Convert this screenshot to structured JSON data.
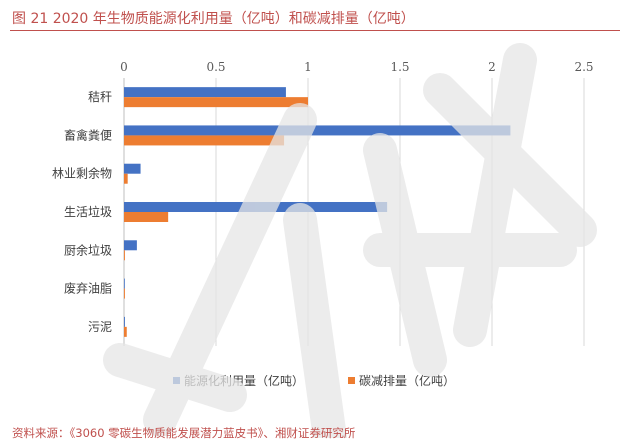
{
  "title": "图 21 2020 年生物质能源化利用量（亿吨）和碳减排量（亿吨）",
  "source": "资料来源：《3060 零碳生物质能发展潜力蓝皮书》、湘财证券研究所",
  "chart_data": {
    "type": "bar",
    "orientation": "horizontal",
    "categories": [
      "秸秆",
      "畜禽粪便",
      "林业剩余物",
      "生活垃圾",
      "厨余垃圾",
      "废弃油脂",
      "污泥"
    ],
    "x_ticks": [
      "0",
      "0.5",
      "1",
      "1.5",
      "2",
      "2.5"
    ],
    "xlim": [
      0,
      2.5
    ],
    "series": [
      {
        "name": "能源化利用量（亿吨）",
        "color": "#4472c4",
        "values": [
          0.88,
          2.1,
          0.09,
          1.43,
          0.07,
          0.003,
          0.005
        ]
      },
      {
        "name": "碳减排量（亿吨）",
        "color": "#ed7d31",
        "values": [
          1.0,
          0.87,
          0.02,
          0.24,
          0.005,
          0.005,
          0.015
        ]
      }
    ],
    "legend_position": "bottom",
    "grid": true
  }
}
